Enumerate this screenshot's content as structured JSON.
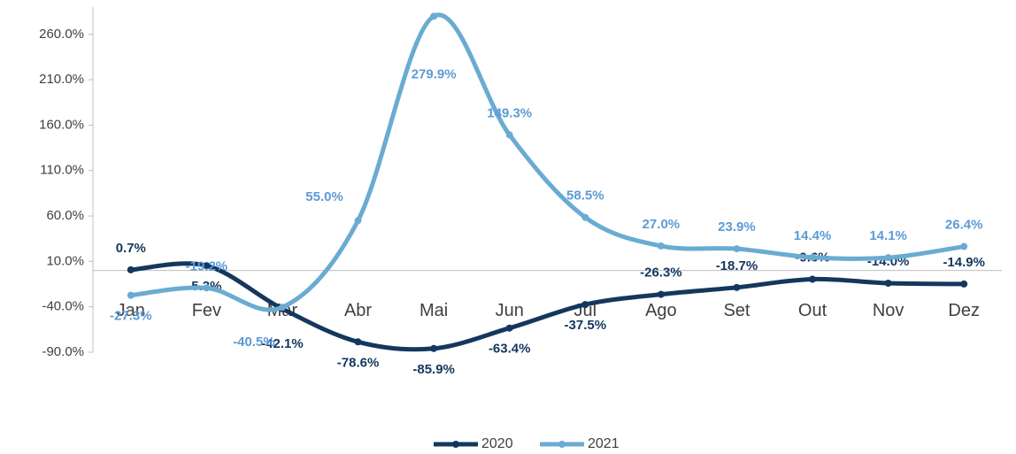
{
  "chart_data": {
    "type": "line",
    "categories": [
      "Jan",
      "Fev",
      "Mar",
      "Abr",
      "Mai",
      "Jun",
      "Jul",
      "Ago",
      "Set",
      "Out",
      "Nov",
      "Dez"
    ],
    "series": [
      {
        "name": "2020",
        "color": "#14375e",
        "values": [
          0.7,
          5.3,
          -42.1,
          -78.6,
          -85.9,
          -63.4,
          -37.5,
          -26.3,
          -18.7,
          -9.6,
          -14.0,
          -14.9
        ],
        "value_labels": [
          "0.7%",
          "5.3%",
          "-42.1%",
          "-78.6%",
          "-85.9%",
          "-63.4%",
          "-37.5%",
          "-26.3%",
          "-18.7%",
          "-9.6%",
          "-14.0%",
          "-14.9%"
        ]
      },
      {
        "name": "2021",
        "color": "#6aabd2",
        "values": [
          -27.3,
          -19.2,
          -40.5,
          55.0,
          279.9,
          149.3,
          58.5,
          27.0,
          23.9,
          14.4,
          14.1,
          26.4
        ],
        "value_labels": [
          "-27.3%",
          "-19.2%",
          "-40.5%",
          "55.0%",
          "279.9%",
          "149.3%",
          "58.5%",
          "27.0%",
          "23.9%",
          "14.4%",
          "14.1%",
          "26.4%"
        ]
      }
    ],
    "ylim": [
      -90,
      290
    ],
    "yticks": [
      {
        "value": -90,
        "label": "-90.0%"
      },
      {
        "value": -40,
        "label": "-40.0%"
      },
      {
        "value": 10,
        "label": "10.0%"
      },
      {
        "value": 60,
        "label": "60.0%"
      },
      {
        "value": 110,
        "label": "110.0%"
      },
      {
        "value": 160,
        "label": "160.0%"
      },
      {
        "value": 210,
        "label": "210.0%"
      },
      {
        "value": 260,
        "label": "260.0%"
      }
    ],
    "legend": "bottom"
  }
}
